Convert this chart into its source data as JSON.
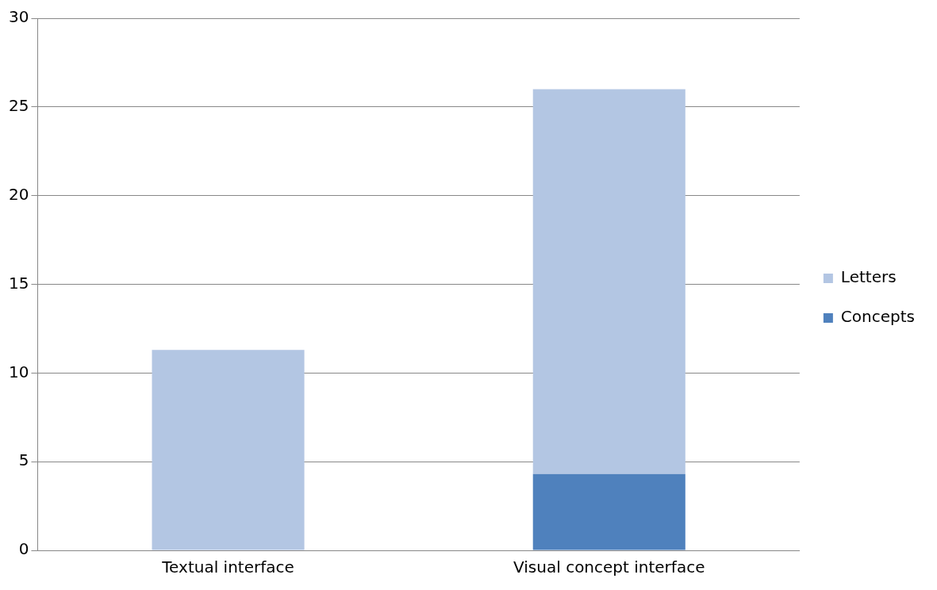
{
  "chart_data": {
    "type": "bar",
    "stacked": true,
    "categories": [
      "Textual interface",
      "Visual concept interface"
    ],
    "series": [
      {
        "name": "Concepts",
        "color": "#4f81bd",
        "values": [
          0,
          4.3
        ]
      },
      {
        "name": "Letters",
        "color": "#b3c6e3",
        "values": [
          11.3,
          21.7
        ]
      }
    ],
    "ylim": [
      0,
      30
    ],
    "yticks": [
      0,
      5,
      10,
      15,
      20,
      25,
      30
    ],
    "grid": "y",
    "legend": "right"
  }
}
